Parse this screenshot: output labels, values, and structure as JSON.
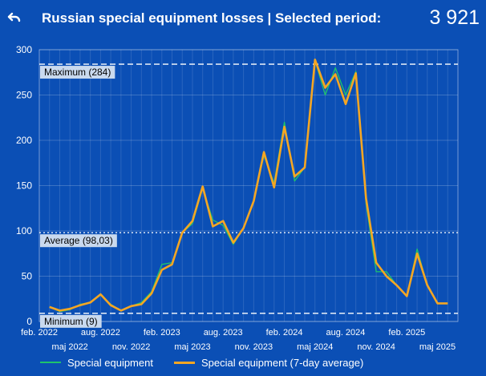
{
  "header": {
    "title": "Russian special equipment losses | Selected period:",
    "total": "3 921"
  },
  "colors": {
    "background": "#0b4fb5",
    "series_daily": "#1fc46b",
    "series_avg": "#f5a623",
    "text": "#ffffff"
  },
  "chart_data": {
    "type": "line",
    "x": [
      "2022-03",
      "2022-04",
      "2022-05",
      "2022-06",
      "2022-07",
      "2022-08",
      "2022-09",
      "2022-10",
      "2022-11",
      "2022-12",
      "2023-01",
      "2023-02",
      "2023-03",
      "2023-04",
      "2023-05",
      "2023-06",
      "2023-07",
      "2023-08",
      "2023-09",
      "2023-10",
      "2023-11",
      "2023-12",
      "2024-01",
      "2024-02",
      "2024-03",
      "2024-04",
      "2024-05",
      "2024-06",
      "2024-07",
      "2024-08",
      "2024-09",
      "2024-10",
      "2024-11",
      "2024-12",
      "2025-01",
      "2025-02",
      "2025-03",
      "2025-04",
      "2025-05",
      "2025-06"
    ],
    "series": [
      {
        "name": "Special equipment",
        "values": [
          16,
          11,
          13,
          19,
          21,
          29,
          19,
          12,
          17,
          21,
          33,
          63,
          65,
          98,
          108,
          147,
          112,
          106,
          85,
          103,
          134,
          183,
          153,
          220,
          155,
          170,
          288,
          250,
          280,
          250,
          276,
          130,
          55,
          55,
          40,
          28,
          80,
          40,
          20,
          20
        ]
      },
      {
        "name": "Special equipment (7-day average)",
        "values": [
          16,
          12,
          14,
          18,
          21,
          30,
          18,
          12,
          17,
          19,
          31,
          57,
          63,
          98,
          111,
          149,
          105,
          111,
          87,
          103,
          133,
          187,
          148,
          215,
          160,
          170,
          289,
          258,
          273,
          240,
          274,
          136,
          65,
          50,
          40,
          28,
          75,
          40,
          20,
          20
        ]
      }
    ],
    "reference_lines": [
      {
        "label": "Maximum (284)",
        "value": 284
      },
      {
        "label": "Average (98,03)",
        "value": 98.03
      },
      {
        "label": "Minimum (9)",
        "value": 9
      }
    ],
    "x_tick_labels_row1": [
      "feb. 2022",
      "aug. 2022",
      "feb. 2023",
      "aug. 2023",
      "feb. 2024",
      "aug. 2024",
      "feb. 2025"
    ],
    "x_tick_labels_row2": [
      "maj 2022",
      "nov. 2022",
      "maj 2023",
      "nov. 2023",
      "maj 2024",
      "nov. 2024",
      "maj 2025"
    ],
    "y_ticks": [
      0,
      50,
      100,
      150,
      200,
      250,
      300
    ],
    "xlim": [
      "2022-02",
      "2025-07"
    ],
    "ylim": [
      0,
      300
    ],
    "grid": true,
    "legend_position": "bottom"
  }
}
